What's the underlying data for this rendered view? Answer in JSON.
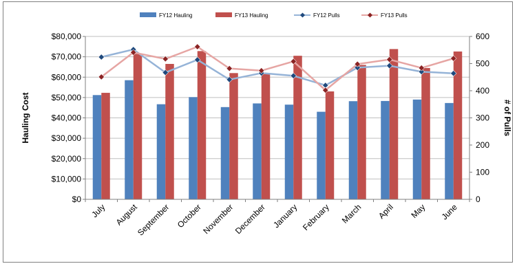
{
  "chart_data": {
    "type": "bar",
    "categories": [
      "July",
      "August",
      "September",
      "October",
      "November",
      "December",
      "January",
      "February",
      "March",
      "April",
      "May",
      "June"
    ],
    "series": [
      {
        "name": "FY12 Hauling",
        "kind": "bar",
        "axis": "left",
        "color": "#4f81bd",
        "values": [
          51200,
          58500,
          46700,
          50200,
          45300,
          47100,
          46500,
          43000,
          48200,
          48300,
          49000,
          47300
        ]
      },
      {
        "name": "FY13 Hauling",
        "kind": "bar",
        "axis": "left",
        "color": "#c0504d",
        "values": [
          52300,
          71400,
          66500,
          72800,
          62000,
          62000,
          70500,
          53000,
          66000,
          73800,
          64500,
          72600
        ]
      },
      {
        "name": "FY12 Pulls",
        "kind": "line",
        "axis": "right",
        "color": "#95b3d7",
        "marker": "#1f497d",
        "values": [
          524,
          552,
          467,
          514,
          441,
          465,
          455,
          420,
          485,
          492,
          470,
          464
        ]
      },
      {
        "name": "FY13 Pulls",
        "kind": "line",
        "axis": "right",
        "color": "#e6a5a3",
        "marker": "#8b2323",
        "values": [
          451,
          541,
          517,
          562,
          482,
          474,
          508,
          402,
          498,
          515,
          484,
          519
        ]
      }
    ],
    "ylabel": "Hauling Cost",
    "y2label": "# of Pulls",
    "ylim": [
      0,
      80000
    ],
    "y2lim": [
      0,
      600
    ],
    "yticks": [
      "$0",
      "$10,000",
      "$20,000",
      "$30,000",
      "$40,000",
      "$50,000",
      "$60,000",
      "$70,000",
      "$80,000"
    ],
    "y2ticks": [
      "0",
      "100",
      "200",
      "300",
      "400",
      "500",
      "600"
    ],
    "legend_position": "top",
    "grid": "horizontal"
  }
}
